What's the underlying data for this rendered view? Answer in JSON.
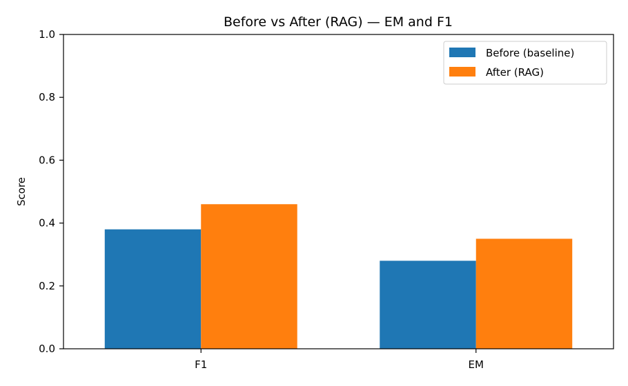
{
  "chart_data": {
    "type": "bar",
    "title": "Before vs After (RAG) — EM and F1",
    "xlabel": "",
    "ylabel": "Score",
    "categories": [
      "F1",
      "EM"
    ],
    "series": [
      {
        "name": "Before (baseline)",
        "color": "#1f77b4",
        "values": [
          0.38,
          0.28
        ]
      },
      {
        "name": "After (RAG)",
        "color": "#ff7f0e",
        "values": [
          0.46,
          0.35
        ]
      }
    ],
    "ylim": [
      0,
      1.0
    ],
    "yticks": [
      "0.0",
      "0.2",
      "0.4",
      "0.6",
      "0.8",
      "1.0"
    ],
    "grid": false,
    "legend_position": "top-right"
  }
}
